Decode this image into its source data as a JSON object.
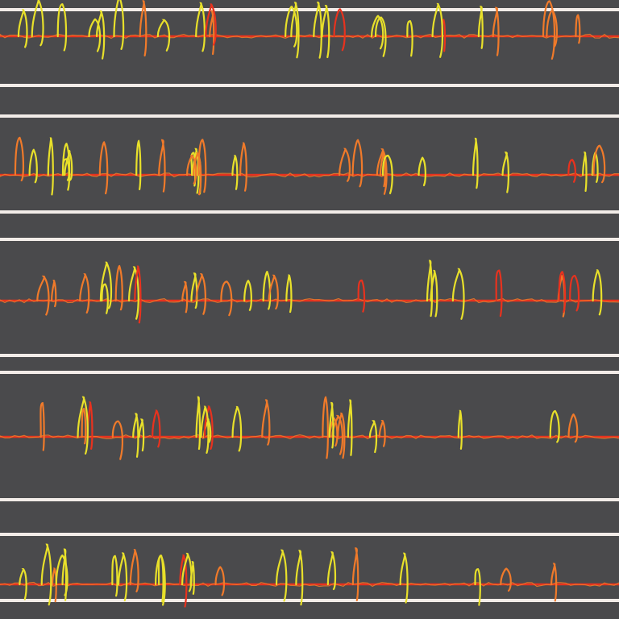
{
  "palette": {
    "background": "#4a4a4c",
    "divider": "#f2ece8",
    "baseline": "#e8321e",
    "trace_orange": "#f07a2a",
    "trace_yellow": "#e8e02a",
    "trace_red": "#e8321e"
  },
  "strips": [
    {
      "id": "strip-1"
    },
    {
      "id": "strip-2"
    },
    {
      "id": "strip-3"
    },
    {
      "id": "strip-4"
    },
    {
      "id": "strip-5"
    }
  ]
}
